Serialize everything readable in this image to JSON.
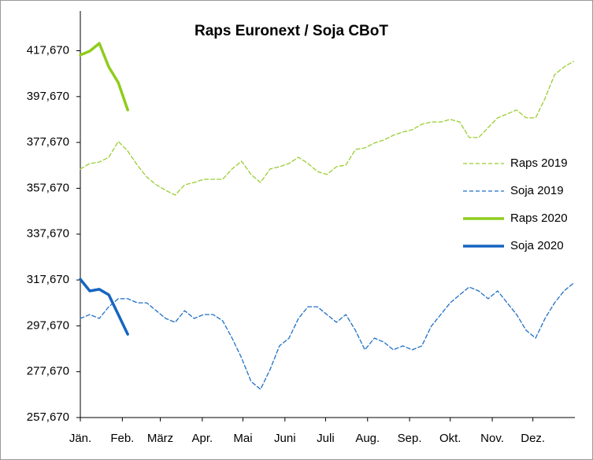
{
  "chart_data": {
    "type": "line",
    "title": "Raps Euronext / Soja CBoT",
    "x": [
      1,
      8,
      15,
      22,
      29,
      36,
      43,
      50,
      57,
      64,
      71,
      78,
      85,
      92,
      99,
      106,
      113,
      120,
      127,
      134,
      141,
      148,
      155,
      162,
      169,
      176,
      183,
      190,
      197,
      204,
      211,
      218,
      225,
      232,
      239,
      246,
      253,
      260,
      267,
      274,
      281,
      288,
      295,
      302,
      309,
      316,
      323,
      330,
      337,
      344,
      351,
      358,
      365
    ],
    "xlim": [
      1,
      366
    ],
    "xticks": [
      {
        "value": 1,
        "label": "Jän."
      },
      {
        "value": 32,
        "label": "Feb."
      },
      {
        "value": 60,
        "label": "März"
      },
      {
        "value": 91,
        "label": "Apr."
      },
      {
        "value": 121,
        "label": "Mai"
      },
      {
        "value": 152,
        "label": "Juni"
      },
      {
        "value": 182,
        "label": "Juli"
      },
      {
        "value": 213,
        "label": "Aug."
      },
      {
        "value": 244,
        "label": "Sep."
      },
      {
        "value": 274,
        "label": "Okt."
      },
      {
        "value": 305,
        "label": "Nov."
      },
      {
        "value": 335,
        "label": "Dez."
      }
    ],
    "ylim": [
      257670,
      435000
    ],
    "yticks": [
      {
        "value": 257670,
        "label": "257,670"
      },
      {
        "value": 277670,
        "label": "277,670"
      },
      {
        "value": 297670,
        "label": "297,670"
      },
      {
        "value": 317670,
        "label": "317,670"
      },
      {
        "value": 337670,
        "label": "337,670"
      },
      {
        "value": 357670,
        "label": "357,670"
      },
      {
        "value": 377670,
        "label": "377,670"
      },
      {
        "value": 397670,
        "label": "397,670"
      },
      {
        "value": 417670,
        "label": "417,670"
      }
    ],
    "series": [
      {
        "name": "Raps 2019",
        "color": "#9acd32",
        "style": "dashed",
        "linewidth": 1.3,
        "values": [
          366100,
          368500,
          369100,
          371200,
          378100,
          373900,
          367800,
          362600,
          359200,
          356800,
          354700,
          359200,
          360200,
          361600,
          361600,
          361600,
          366100,
          369500,
          363700,
          360200,
          366100,
          367100,
          368500,
          371200,
          368500,
          365000,
          363700,
          367100,
          367800,
          374600,
          375300,
          377400,
          378700,
          380800,
          382200,
          383200,
          385600,
          386600,
          386600,
          387700,
          386600,
          379800,
          379800,
          384200,
          388400,
          390100,
          391800,
          388400,
          388400,
          396900,
          407200,
          410600,
          413000
        ]
      },
      {
        "name": "Soja 2019",
        "color": "#1f6fc5",
        "style": "dashed",
        "linewidth": 1.3,
        "values": [
          300900,
          302600,
          300900,
          306000,
          309500,
          309500,
          307700,
          307700,
          304300,
          300900,
          299200,
          304300,
          300900,
          302600,
          302600,
          299900,
          292300,
          283700,
          273400,
          270000,
          278600,
          288900,
          292300,
          300900,
          306000,
          306000,
          302600,
          299200,
          302600,
          295700,
          287200,
          292300,
          290600,
          287200,
          288900,
          287200,
          288900,
          297500,
          302600,
          307700,
          311200,
          314600,
          312900,
          309500,
          312900,
          307700,
          302600,
          295700,
          292300,
          300900,
          307700,
          312900,
          316300
        ]
      },
      {
        "name": "Raps 2020",
        "color": "#8fcc1c",
        "style": "solid",
        "linewidth": 3.5,
        "values": [
          415800,
          417500,
          420900,
          410600,
          403800,
          391800,
          null,
          null,
          null,
          null,
          null,
          null,
          null,
          null,
          null,
          null,
          null,
          null,
          null,
          null,
          null,
          null,
          null,
          null,
          null,
          null,
          null,
          null,
          null,
          null,
          null,
          null,
          null,
          null,
          null,
          null,
          null,
          null,
          null,
          null,
          null,
          null,
          null,
          null,
          null,
          null,
          null,
          null,
          null,
          null,
          null,
          null,
          null
        ]
      },
      {
        "name": "Soja 2020",
        "color": "#1565c0",
        "style": "solid",
        "linewidth": 3.5,
        "values": [
          318000,
          312900,
          313600,
          311200,
          302600,
          294000,
          null,
          null,
          null,
          null,
          null,
          null,
          null,
          null,
          null,
          null,
          null,
          null,
          null,
          null,
          null,
          null,
          null,
          null,
          null,
          null,
          null,
          null,
          null,
          null,
          null,
          null,
          null,
          null,
          null,
          null,
          null,
          null,
          null,
          null,
          null,
          null,
          null,
          null,
          null,
          null,
          null,
          null,
          null,
          null,
          null,
          null,
          null
        ]
      }
    ]
  }
}
